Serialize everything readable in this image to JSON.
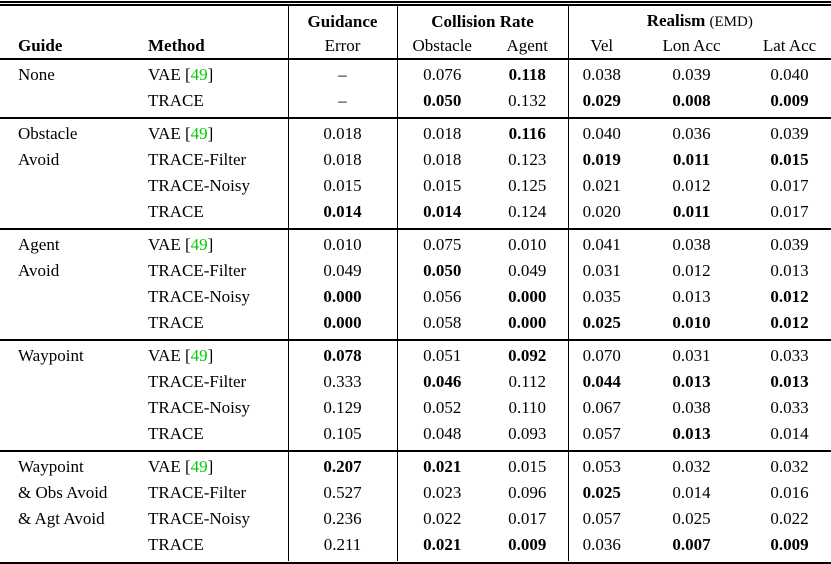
{
  "colors": {
    "cite_green": "#00cc00",
    "text": "#000000",
    "rule": "#000000"
  },
  "punct": {
    "cite_open": "[",
    "cite_close": "]",
    "cite_space": " "
  },
  "table": {
    "header": {
      "guide_label": "Guide",
      "method_label": "Method",
      "guidance_top": "Guidance",
      "guidance_bottom": "Error",
      "collision_title": "Collision Rate",
      "collision_cols": [
        "Obstacle",
        "Agent"
      ],
      "realism_title": "Realism",
      "realism_suffix": "(EMD)",
      "realism_cols": [
        "Vel",
        "Lon Acc",
        "Lat Acc"
      ]
    },
    "sections": [
      {
        "guide_lines": [
          "None"
        ],
        "rows": [
          {
            "method": "VAE",
            "cite": "49",
            "cells": [
              {
                "t": "–",
                "b": false
              },
              {
                "t": "0.076",
                "b": false
              },
              {
                "t": "0.118",
                "b": true
              },
              {
                "t": "0.038",
                "b": false
              },
              {
                "t": "0.039",
                "b": false
              },
              {
                "t": "0.040",
                "b": false
              }
            ]
          },
          {
            "method": "TRACE",
            "cite": null,
            "cells": [
              {
                "t": "–",
                "b": false
              },
              {
                "t": "0.050",
                "b": true
              },
              {
                "t": "0.132",
                "b": false
              },
              {
                "t": "0.029",
                "b": true
              },
              {
                "t": "0.008",
                "b": true
              },
              {
                "t": "0.009",
                "b": true
              }
            ]
          }
        ]
      },
      {
        "guide_lines": [
          "Obstacle",
          "Avoid"
        ],
        "rows": [
          {
            "method": "VAE",
            "cite": "49",
            "cells": [
              {
                "t": "0.018",
                "b": false
              },
              {
                "t": "0.018",
                "b": false
              },
              {
                "t": "0.116",
                "b": true
              },
              {
                "t": "0.040",
                "b": false
              },
              {
                "t": "0.036",
                "b": false
              },
              {
                "t": "0.039",
                "b": false
              }
            ]
          },
          {
            "method": "TRACE-Filter",
            "cite": null,
            "cells": [
              {
                "t": "0.018",
                "b": false
              },
              {
                "t": "0.018",
                "b": false
              },
              {
                "t": "0.123",
                "b": false
              },
              {
                "t": "0.019",
                "b": true
              },
              {
                "t": "0.011",
                "b": true
              },
              {
                "t": "0.015",
                "b": true
              }
            ]
          },
          {
            "method": "TRACE-Noisy",
            "cite": null,
            "cells": [
              {
                "t": "0.015",
                "b": false
              },
              {
                "t": "0.015",
                "b": false
              },
              {
                "t": "0.125",
                "b": false
              },
              {
                "t": "0.021",
                "b": false
              },
              {
                "t": "0.012",
                "b": false
              },
              {
                "t": "0.017",
                "b": false
              }
            ]
          },
          {
            "method": "TRACE",
            "cite": null,
            "cells": [
              {
                "t": "0.014",
                "b": true
              },
              {
                "t": "0.014",
                "b": true
              },
              {
                "t": "0.124",
                "b": false
              },
              {
                "t": "0.020",
                "b": false
              },
              {
                "t": "0.011",
                "b": true
              },
              {
                "t": "0.017",
                "b": false
              }
            ]
          }
        ]
      },
      {
        "guide_lines": [
          "Agent",
          "Avoid"
        ],
        "rows": [
          {
            "method": "VAE",
            "cite": "49",
            "cells": [
              {
                "t": "0.010",
                "b": false
              },
              {
                "t": "0.075",
                "b": false
              },
              {
                "t": "0.010",
                "b": false
              },
              {
                "t": "0.041",
                "b": false
              },
              {
                "t": "0.038",
                "b": false
              },
              {
                "t": "0.039",
                "b": false
              }
            ]
          },
          {
            "method": "TRACE-Filter",
            "cite": null,
            "cells": [
              {
                "t": "0.049",
                "b": false
              },
              {
                "t": "0.050",
                "b": true
              },
              {
                "t": "0.049",
                "b": false
              },
              {
                "t": "0.031",
                "b": false
              },
              {
                "t": "0.012",
                "b": false
              },
              {
                "t": "0.013",
                "b": false
              }
            ]
          },
          {
            "method": "TRACE-Noisy",
            "cite": null,
            "cells": [
              {
                "t": "0.000",
                "b": true
              },
              {
                "t": "0.056",
                "b": false
              },
              {
                "t": "0.000",
                "b": true
              },
              {
                "t": "0.035",
                "b": false
              },
              {
                "t": "0.013",
                "b": false
              },
              {
                "t": "0.012",
                "b": true
              }
            ]
          },
          {
            "method": "TRACE",
            "cite": null,
            "cells": [
              {
                "t": "0.000",
                "b": true
              },
              {
                "t": "0.058",
                "b": false
              },
              {
                "t": "0.000",
                "b": true
              },
              {
                "t": "0.025",
                "b": true
              },
              {
                "t": "0.010",
                "b": true
              },
              {
                "t": "0.012",
                "b": true
              }
            ]
          }
        ]
      },
      {
        "guide_lines": [
          "Waypoint"
        ],
        "rows": [
          {
            "method": "VAE",
            "cite": "49",
            "cells": [
              {
                "t": "0.078",
                "b": true
              },
              {
                "t": "0.051",
                "b": false
              },
              {
                "t": "0.092",
                "b": true
              },
              {
                "t": "0.070",
                "b": false
              },
              {
                "t": "0.031",
                "b": false
              },
              {
                "t": "0.033",
                "b": false
              }
            ]
          },
          {
            "method": "TRACE-Filter",
            "cite": null,
            "cells": [
              {
                "t": "0.333",
                "b": false
              },
              {
                "t": "0.046",
                "b": true
              },
              {
                "t": "0.112",
                "b": false
              },
              {
                "t": "0.044",
                "b": true
              },
              {
                "t": "0.013",
                "b": true
              },
              {
                "t": "0.013",
                "b": true
              }
            ]
          },
          {
            "method": "TRACE-Noisy",
            "cite": null,
            "cells": [
              {
                "t": "0.129",
                "b": false
              },
              {
                "t": "0.052",
                "b": false
              },
              {
                "t": "0.110",
                "b": false
              },
              {
                "t": "0.067",
                "b": false
              },
              {
                "t": "0.038",
                "b": false
              },
              {
                "t": "0.033",
                "b": false
              }
            ]
          },
          {
            "method": "TRACE",
            "cite": null,
            "cells": [
              {
                "t": "0.105",
                "b": false
              },
              {
                "t": "0.048",
                "b": false
              },
              {
                "t": "0.093",
                "b": false
              },
              {
                "t": "0.057",
                "b": false
              },
              {
                "t": "0.013",
                "b": true
              },
              {
                "t": "0.014",
                "b": false
              }
            ]
          }
        ]
      },
      {
        "guide_lines": [
          "Waypoint",
          "& Obs Avoid",
          "& Agt Avoid"
        ],
        "rows": [
          {
            "method": "VAE",
            "cite": "49",
            "cells": [
              {
                "t": "0.207",
                "b": true
              },
              {
                "t": "0.021",
                "b": true
              },
              {
                "t": "0.015",
                "b": false
              },
              {
                "t": "0.053",
                "b": false
              },
              {
                "t": "0.032",
                "b": false
              },
              {
                "t": "0.032",
                "b": false
              }
            ]
          },
          {
            "method": "TRACE-Filter",
            "cite": null,
            "cells": [
              {
                "t": "0.527",
                "b": false
              },
              {
                "t": "0.023",
                "b": false
              },
              {
                "t": "0.096",
                "b": false
              },
              {
                "t": "0.025",
                "b": true
              },
              {
                "t": "0.014",
                "b": false
              },
              {
                "t": "0.016",
                "b": false
              }
            ]
          },
          {
            "method": "TRACE-Noisy",
            "cite": null,
            "cells": [
              {
                "t": "0.236",
                "b": false
              },
              {
                "t": "0.022",
                "b": false
              },
              {
                "t": "0.017",
                "b": false
              },
              {
                "t": "0.057",
                "b": false
              },
              {
                "t": "0.025",
                "b": false
              },
              {
                "t": "0.022",
                "b": false
              }
            ]
          },
          {
            "method": "TRACE",
            "cite": null,
            "cells": [
              {
                "t": "0.211",
                "b": false
              },
              {
                "t": "0.021",
                "b": true
              },
              {
                "t": "0.009",
                "b": true
              },
              {
                "t": "0.036",
                "b": false
              },
              {
                "t": "0.007",
                "b": true
              },
              {
                "t": "0.009",
                "b": true
              }
            ]
          }
        ]
      }
    ]
  }
}
